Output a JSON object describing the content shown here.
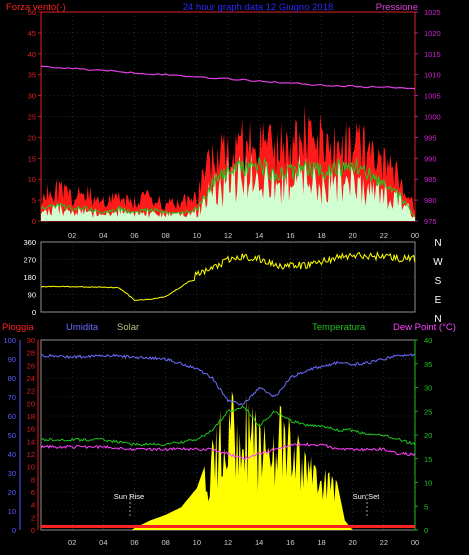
{
  "header": {
    "left": "Forza vento(·)",
    "center": "24 hour graph data  12 Giugno 2018",
    "right": "Pressione"
  },
  "colors": {
    "gust": "#ff1a1a",
    "avg_wind": "#1ec81e",
    "wind_fill": "#d2ffd2",
    "pressure": "#e040e0",
    "direction": "#ffff00",
    "humidity": "#6b6bff",
    "temperature": "#20c020",
    "dew_point": "#ff40ff",
    "solar": "#ffff00",
    "rain": "#ff2020",
    "grid": "#505050",
    "axis_red": "#e02020",
    "axis_magenta": "#d020d0",
    "axis_green": "#20c020",
    "axis_blue": "#5a5aff"
  },
  "wind_panel": {
    "left_ticks": [
      "0",
      "5",
      "10",
      "15",
      "20",
      "25",
      "30",
      "35",
      "40",
      "45",
      "50"
    ],
    "right_ticks": [
      "975",
      "980",
      "985",
      "990",
      "995",
      "1000",
      "1005",
      "1010",
      "1015",
      "1020",
      "1025"
    ]
  },
  "direction_panel": {
    "left_ticks": [
      "0",
      "90",
      "180",
      "270",
      "360"
    ],
    "right_labels": [
      "N",
      "W",
      "S",
      "E",
      "N"
    ]
  },
  "bottom_panel": {
    "labels": {
      "rain": "Pioggia",
      "humidity": "Umidita",
      "solar": "Solar",
      "temperature": "Temperatura",
      "dew_point": "Dew Point (°C)"
    },
    "humidity_ticks": [
      "0",
      "10",
      "20",
      "30",
      "40",
      "50",
      "60",
      "70",
      "80",
      "90",
      "100"
    ],
    "rain_ticks": [
      "0",
      "2",
      "4",
      "6",
      "8",
      "10",
      "12",
      "14",
      "16",
      "18",
      "20",
      "22",
      "24",
      "26",
      "28",
      "30"
    ],
    "temp_ticks": [
      "0",
      "5",
      "10",
      "15",
      "20",
      "25",
      "30",
      "35",
      "40"
    ],
    "sun_rise": "Sun Rise",
    "sun_set": "Sun Set"
  },
  "x_tick_labels": [
    "02",
    "04",
    "06",
    "08",
    "10",
    "12",
    "14",
    "16",
    "18",
    "20",
    "22",
    "00"
  ],
  "chart_data": [
    {
      "type": "area",
      "title": "24 hour graph data  12 Giugno 2018",
      "x_unit": "hours",
      "y_left": {
        "label": "Forza vento",
        "range": [
          0,
          50
        ]
      },
      "y_right": {
        "label": "Pressione",
        "range": [
          975,
          1025
        ]
      },
      "series": [
        {
          "name": "Forza vento",
          "axis": "left",
          "x": [
            0,
            1,
            2,
            3,
            4,
            5,
            6,
            7,
            8,
            9,
            10,
            11,
            12,
            13,
            14,
            15,
            16,
            17,
            18,
            19,
            20,
            21,
            22,
            23,
            24
          ],
          "values": [
            7,
            8,
            6,
            7,
            5,
            6,
            5,
            6,
            4,
            5,
            6,
            17,
            20,
            19,
            21,
            18,
            19,
            22,
            20,
            19,
            21,
            18,
            14,
            11,
            3
          ]
        },
        {
          "name": "Forza vento (media)",
          "axis": "left",
          "x": [
            0,
            1,
            2,
            3,
            4,
            5,
            6,
            7,
            8,
            9,
            10,
            11,
            12,
            13,
            14,
            15,
            16,
            17,
            18,
            19,
            20,
            21,
            22,
            23,
            24
          ],
          "values": [
            3,
            4,
            3,
            3,
            2,
            3,
            2,
            3,
            2,
            2,
            3,
            9,
            12,
            13,
            14,
            11,
            12,
            13,
            12,
            13,
            14,
            12,
            9,
            6,
            1
          ]
        },
        {
          "name": "Pressione",
          "axis": "right",
          "x": [
            0,
            2,
            4,
            6,
            8,
            10,
            12,
            14,
            16,
            18,
            20,
            22,
            24
          ],
          "values": [
            1012,
            1011.5,
            1011,
            1010.5,
            1010,
            1009.5,
            1009,
            1008.5,
            1008,
            1007.5,
            1007.2,
            1007,
            1006.8
          ]
        }
      ]
    },
    {
      "type": "line",
      "x_unit": "hours",
      "y": {
        "range": [
          0,
          360
        ]
      },
      "series": [
        {
          "name": "Direzione vento",
          "x": [
            0,
            1,
            2,
            3,
            4,
            5,
            5.5,
            6,
            7,
            8,
            9,
            10,
            11,
            12,
            13,
            14,
            15,
            16,
            17,
            18,
            19,
            20,
            21,
            22,
            23,
            24
          ],
          "values": [
            130,
            132,
            130,
            128,
            128,
            125,
            95,
            60,
            65,
            80,
            130,
            190,
            225,
            265,
            285,
            270,
            245,
            235,
            240,
            260,
            280,
            290,
            285,
            290,
            275,
            270
          ]
        }
      ]
    },
    {
      "type": "line",
      "x_unit": "hours",
      "y_humidity": {
        "label": "Umidita",
        "range": [
          0,
          100
        ]
      },
      "y_rain": {
        "label": "Pioggia",
        "range": [
          0,
          30
        ]
      },
      "y_temp": {
        "label": "Temperatura",
        "range": [
          0,
          40
        ]
      },
      "series": [
        {
          "name": "Umidita",
          "axis": "humidity",
          "x": [
            0,
            2,
            4,
            6,
            8,
            10,
            11,
            12,
            13,
            14,
            15,
            16,
            17,
            18,
            19,
            20,
            21,
            22,
            23,
            24
          ],
          "values": [
            92,
            91,
            92,
            91,
            90,
            85,
            80,
            68,
            66,
            75,
            70,
            80,
            84,
            86,
            88,
            87,
            88,
            90,
            92,
            92
          ]
        },
        {
          "name": "Temperatura",
          "axis": "temp",
          "x": [
            0,
            2,
            4,
            6,
            8,
            10,
            11,
            12,
            13,
            14,
            15,
            16,
            17,
            18,
            19,
            20,
            21,
            22,
            23,
            24
          ],
          "values": [
            19,
            19,
            19,
            18,
            18,
            19,
            21,
            25,
            26,
            22,
            25,
            23,
            22,
            22,
            21,
            21,
            20,
            20,
            19,
            18
          ]
        },
        {
          "name": "Dew Point",
          "axis": "temp",
          "x": [
            0,
            2,
            4,
            6,
            8,
            10,
            11,
            12,
            13,
            14,
            15,
            16,
            17,
            18,
            19,
            20,
            21,
            22,
            23,
            24
          ],
          "values": [
            17.5,
            17.5,
            17.5,
            17,
            17,
            17,
            17,
            16,
            15,
            16,
            17,
            18,
            18,
            18,
            17,
            17,
            17,
            17,
            16,
            16
          ]
        },
        {
          "name": "Solar",
          "axis": "humidity",
          "x": [
            5.8,
            6,
            7,
            8,
            9,
            10,
            11,
            12,
            13,
            14,
            15,
            16,
            17,
            18,
            19,
            19.5,
            20
          ],
          "values": [
            0,
            1,
            5,
            8,
            12,
            22,
            45,
            72,
            70,
            55,
            62,
            55,
            44,
            38,
            25,
            5,
            0
          ]
        },
        {
          "name": "Pioggia",
          "axis": "rain",
          "x": [
            0,
            24
          ],
          "values": [
            0,
            0
          ]
        }
      ],
      "annotations": [
        "Sun Rise",
        "Sun Set"
      ]
    }
  ]
}
